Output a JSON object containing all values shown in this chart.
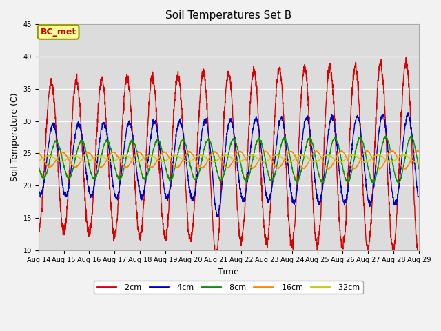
{
  "title": "Soil Temperatures Set B",
  "xlabel": "Time",
  "ylabel": "Soil Temperature (C)",
  "ylim": [
    10,
    45
  ],
  "yticks": [
    10,
    15,
    20,
    25,
    30,
    35,
    40,
    45
  ],
  "annotation": "BC_met",
  "annotation_color": "#CC0000",
  "annotation_bg": "#FFFF99",
  "annotation_border": "#999900",
  "plot_bg": "#DCDCDC",
  "fig_bg": "#F2F2F2",
  "series": [
    {
      "label": "-2cm",
      "color": "#DD0000",
      "amplitude": 11.5,
      "mean": 24.5,
      "phase_shift": 0.0,
      "lag_days": 0.0,
      "period_scale": 1.0
    },
    {
      "label": "-4cm",
      "color": "#0000CC",
      "amplitude": 5.5,
      "mean": 24.0,
      "phase_shift": 0.0,
      "lag_days": 0.08,
      "period_scale": 1.0
    },
    {
      "label": "-8cm",
      "color": "#009900",
      "amplitude": 2.8,
      "mean": 24.0,
      "phase_shift": 0.0,
      "lag_days": 0.2,
      "period_scale": 1.0
    },
    {
      "label": "-16cm",
      "color": "#FF8800",
      "amplitude": 1.1,
      "mean": 24.0,
      "phase_shift": 0.0,
      "lag_days": 0.45,
      "period_scale": 1.0
    },
    {
      "label": "-32cm",
      "color": "#CCCC00",
      "amplitude": 0.45,
      "mean": 24.2,
      "phase_shift": 0.0,
      "lag_days": 0.9,
      "period_scale": 1.0
    }
  ],
  "xtick_labels": [
    "Aug 14",
    "Aug 15",
    "Aug 16",
    "Aug 17",
    "Aug 18",
    "Aug 19",
    "Aug 20",
    "Aug 21",
    "Aug 22",
    "Aug 23",
    "Aug 24",
    "Aug 25",
    "Aug 26",
    "Aug 27",
    "Aug 28",
    "Aug 29"
  ],
  "grid_color": "#FFFFFF",
  "grid_linewidth": 1.0,
  "line_linewidth": 1.0,
  "legend_fontsize": 8,
  "title_fontsize": 11,
  "axis_label_fontsize": 9,
  "tick_fontsize": 7
}
